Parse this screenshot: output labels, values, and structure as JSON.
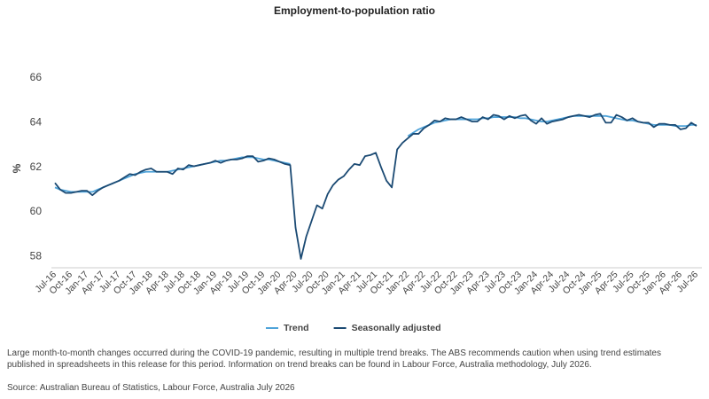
{
  "chart_data": {
    "type": "line",
    "title": "Employment-to-population ratio",
    "y_label": "%",
    "categories": [
      "Jul-16",
      null,
      null,
      "Oct-16",
      null,
      null,
      "Jan-17",
      null,
      null,
      "Apr-17",
      null,
      null,
      "Jul-17",
      null,
      null,
      "Oct-17",
      null,
      null,
      "Jan-18",
      null,
      null,
      "Apr-18",
      null,
      null,
      "Jul-18",
      null,
      null,
      "Oct-18",
      null,
      null,
      "Jan-19",
      null,
      null,
      "Apr-19",
      null,
      null,
      "Jul-19",
      null,
      null,
      "Oct-19",
      null,
      null,
      "Jan-20",
      null,
      null,
      "Apr-20",
      null,
      null,
      "Jul-20",
      null,
      null,
      "Oct-20",
      null,
      null,
      "Jan-21",
      null,
      null,
      "Apr-21",
      null,
      null,
      "Jul-21",
      null,
      null,
      "Oct-21",
      null,
      null,
      "Jan-22",
      null,
      null,
      "Apr-22",
      null,
      null,
      "Jul-22",
      null,
      null,
      "Oct-22",
      null,
      null,
      "Jan-23",
      null,
      null,
      "Apr-23",
      null,
      null,
      "Jul-23",
      null,
      null,
      "Oct-23",
      null,
      null,
      "Jan-24",
      null,
      null,
      "Apr-24",
      null,
      null,
      "Jul-24",
      null,
      null,
      "Oct-24",
      null,
      null,
      "Jan-25",
      null,
      null,
      "Apr-25",
      null,
      null,
      "Jul-25",
      null,
      null,
      "Oct-25",
      null,
      null,
      "Jan-26",
      null,
      null,
      "Apr-26",
      null,
      null,
      "Jul-26"
    ],
    "series": [
      {
        "name": "Trend",
        "color": "#4fa3d9",
        "values": [
          61.1,
          61.0,
          60.95,
          60.9,
          60.9,
          60.9,
          60.9,
          60.9,
          61.0,
          61.1,
          61.2,
          61.3,
          61.4,
          61.5,
          61.6,
          61.7,
          61.75,
          61.8,
          61.8,
          61.8,
          61.8,
          61.8,
          61.85,
          61.9,
          61.95,
          62.0,
          62.05,
          62.1,
          62.15,
          62.2,
          62.25,
          62.3,
          62.3,
          62.35,
          62.4,
          62.45,
          62.45,
          62.45,
          62.4,
          62.35,
          62.35,
          62.3,
          62.25,
          62.2,
          62.15,
          null,
          null,
          null,
          null,
          null,
          null,
          null,
          null,
          null,
          null,
          null,
          null,
          null,
          null,
          null,
          null,
          null,
          null,
          null,
          null,
          null,
          63.4,
          63.55,
          63.7,
          63.8,
          63.9,
          64.0,
          64.05,
          64.1,
          64.15,
          64.15,
          64.15,
          64.15,
          64.15,
          64.15,
          64.2,
          64.2,
          64.25,
          64.25,
          64.25,
          64.25,
          64.25,
          64.2,
          64.2,
          64.15,
          64.1,
          64.05,
          64.05,
          64.1,
          64.15,
          64.2,
          64.25,
          64.3,
          64.3,
          64.3,
          64.3,
          64.3,
          64.3,
          64.3,
          64.25,
          64.2,
          64.15,
          64.1,
          64.1,
          64.05,
          64.0,
          63.95,
          63.9,
          63.9,
          63.9,
          63.9,
          63.85,
          63.85,
          63.85,
          63.9,
          63.9
        ]
      },
      {
        "name": "Seasonally adjusted",
        "color": "#1b4a73",
        "values": [
          61.3,
          61.0,
          60.85,
          60.85,
          60.9,
          60.95,
          60.95,
          60.75,
          60.95,
          61.1,
          61.2,
          61.3,
          61.4,
          61.55,
          61.7,
          61.65,
          61.8,
          61.9,
          61.95,
          61.8,
          61.8,
          61.8,
          61.7,
          61.95,
          61.9,
          62.1,
          62.05,
          62.1,
          62.15,
          62.2,
          62.3,
          62.2,
          62.3,
          62.35,
          62.35,
          62.4,
          62.5,
          62.5,
          62.25,
          62.3,
          62.4,
          62.35,
          62.25,
          62.15,
          62.1,
          59.3,
          57.9,
          58.9,
          59.6,
          60.3,
          60.15,
          60.8,
          61.2,
          61.45,
          61.6,
          61.9,
          62.15,
          62.1,
          62.5,
          62.55,
          62.65,
          62.0,
          61.4,
          61.1,
          62.8,
          63.1,
          63.3,
          63.5,
          63.5,
          63.75,
          63.9,
          64.1,
          64.05,
          64.2,
          64.15,
          64.15,
          64.25,
          64.15,
          64.05,
          64.05,
          64.25,
          64.15,
          64.35,
          64.3,
          64.15,
          64.3,
          64.2,
          64.3,
          64.35,
          64.1,
          63.95,
          64.2,
          63.95,
          64.05,
          64.1,
          64.15,
          64.25,
          64.3,
          64.35,
          64.3,
          64.25,
          64.35,
          64.4,
          64.0,
          64.0,
          64.35,
          64.25,
          64.1,
          64.2,
          64.05,
          64.0,
          64.0,
          63.8,
          63.95,
          63.95,
          63.9,
          63.9,
          63.7,
          63.75,
          64.0,
          63.85
        ]
      }
    ],
    "ylim": [
      57.5,
      66
    ],
    "yticks": [
      58,
      60,
      62,
      64,
      66
    ],
    "grid": false,
    "note": "Large month-to-month changes occurred during the COVID-19 pandemic, resulting in multiple trend breaks. The ABS recommends caution when using trend estimates published in spreadsheets in this release for this period. Information on trend breaks can be found in Labour Force, Australia methodology, July 2026.",
    "source": "Source: Australian Bureau of Statistics, Labour Force, Australia July 2026"
  }
}
